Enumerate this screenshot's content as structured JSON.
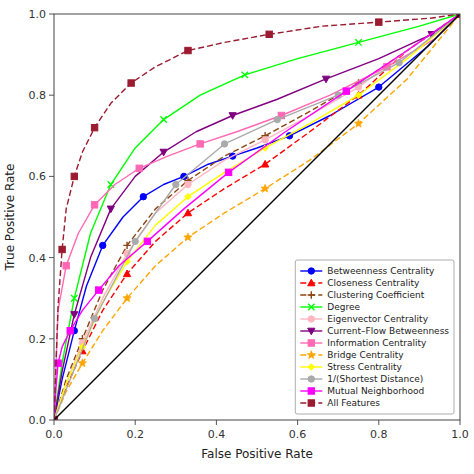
{
  "chart_data": {
    "type": "line",
    "xlabel": "False Positive Rate",
    "ylabel": "True Positive Rate",
    "xlim": [
      0,
      1
    ],
    "ylim": [
      0,
      1
    ],
    "xticks": [
      {
        "value": 0,
        "label": "0.0"
      },
      0.2,
      0.4,
      0.6,
      0.8,
      {
        "value": 1,
        "label": "1.0"
      }
    ],
    "yticks": [
      {
        "value": 0,
        "label": "0.0"
      },
      0.2,
      0.4,
      0.6,
      0.8,
      {
        "value": 1,
        "label": "1.0"
      }
    ],
    "legend": "lower right",
    "series": [
      {
        "name": "Betweenness Centrality",
        "color": "blue",
        "marker": "o",
        "line_style": "solid",
        "x": [
          0.0,
          0.02,
          0.05,
          0.08,
          0.12,
          0.17,
          0.22,
          0.27,
          0.32,
          0.38,
          0.44,
          0.5,
          0.58,
          0.68,
          0.8,
          0.92,
          1.0
        ],
        "values": [
          0.0,
          0.1,
          0.22,
          0.33,
          0.43,
          0.5,
          0.55,
          0.58,
          0.6,
          0.63,
          0.65,
          0.67,
          0.7,
          0.75,
          0.82,
          0.92,
          1.0
        ]
      },
      {
        "name": "Closeness Centrality",
        "color": "red",
        "marker": "^",
        "line_style": "dashed",
        "x": [
          0.0,
          0.03,
          0.07,
          0.12,
          0.18,
          0.25,
          0.33,
          0.42,
          0.52,
          0.63,
          0.75,
          0.87,
          1.0
        ],
        "values": [
          0.0,
          0.08,
          0.17,
          0.27,
          0.36,
          0.44,
          0.51,
          0.57,
          0.63,
          0.71,
          0.8,
          0.91,
          1.0
        ]
      },
      {
        "name": "Clustering Coefficient",
        "color": "#8B4513",
        "marker": "+",
        "line_style": "dashed",
        "x": [
          0.0,
          0.03,
          0.07,
          0.12,
          0.18,
          0.25,
          0.33,
          0.42,
          0.52,
          0.63,
          0.75,
          0.87,
          1.0
        ],
        "values": [
          0.0,
          0.1,
          0.2,
          0.32,
          0.43,
          0.52,
          0.59,
          0.65,
          0.7,
          0.76,
          0.83,
          0.91,
          1.0
        ]
      },
      {
        "name": "Degree",
        "color": "lime",
        "marker": "x",
        "line_style": "solid",
        "x": [
          0.0,
          0.02,
          0.05,
          0.09,
          0.14,
          0.2,
          0.27,
          0.36,
          0.47,
          0.6,
          0.75,
          0.9,
          1.0
        ],
        "values": [
          0.0,
          0.14,
          0.3,
          0.46,
          0.58,
          0.67,
          0.74,
          0.8,
          0.85,
          0.89,
          0.93,
          0.97,
          1.0
        ]
      },
      {
        "name": "Eigenvector Centrality",
        "color": "#FFB6C1",
        "marker": "o",
        "line_style": "solid",
        "x": [
          0.0,
          0.03,
          0.07,
          0.12,
          0.18,
          0.25,
          0.33,
          0.42,
          0.52,
          0.63,
          0.75,
          0.87,
          1.0
        ],
        "values": [
          0.0,
          0.09,
          0.19,
          0.3,
          0.41,
          0.51,
          0.58,
          0.64,
          0.69,
          0.75,
          0.82,
          0.91,
          1.0
        ]
      },
      {
        "name": "Current–Flow Betweenness",
        "color": "purple",
        "marker": "v",
        "line_style": "solid",
        "x": [
          0.0,
          0.02,
          0.05,
          0.09,
          0.14,
          0.2,
          0.27,
          0.35,
          0.44,
          0.55,
          0.67,
          0.8,
          0.93,
          1.0
        ],
        "values": [
          0.0,
          0.12,
          0.26,
          0.4,
          0.52,
          0.6,
          0.66,
          0.71,
          0.75,
          0.79,
          0.84,
          0.89,
          0.95,
          1.0
        ]
      },
      {
        "name": "Information Centrality",
        "color": "#FF69B4",
        "marker": "s",
        "line_style": "solid",
        "x": [
          0.0,
          0.01,
          0.03,
          0.06,
          0.1,
          0.15,
          0.21,
          0.28,
          0.36,
          0.45,
          0.56,
          0.68,
          0.82,
          0.94,
          1.0
        ],
        "values": [
          0.0,
          0.27,
          0.38,
          0.46,
          0.53,
          0.58,
          0.62,
          0.65,
          0.68,
          0.71,
          0.75,
          0.8,
          0.87,
          0.94,
          1.0
        ]
      },
      {
        "name": "Bridge Centrality",
        "color": "orange",
        "marker": "*",
        "line_style": "dashed",
        "x": [
          0.0,
          0.03,
          0.07,
          0.12,
          0.18,
          0.25,
          0.33,
          0.42,
          0.52,
          0.63,
          0.75,
          0.87,
          1.0
        ],
        "values": [
          0.0,
          0.07,
          0.14,
          0.22,
          0.3,
          0.38,
          0.45,
          0.51,
          0.57,
          0.64,
          0.73,
          0.84,
          1.0
        ]
      },
      {
        "name": "Stress Centrality",
        "color": "yellow",
        "marker": "D",
        "line_style": "solid",
        "x": [
          0.0,
          0.03,
          0.07,
          0.12,
          0.18,
          0.25,
          0.33,
          0.42,
          0.52,
          0.63,
          0.75,
          0.87,
          1.0
        ],
        "values": [
          0.0,
          0.09,
          0.18,
          0.29,
          0.39,
          0.48,
          0.55,
          0.61,
          0.67,
          0.73,
          0.8,
          0.89,
          1.0
        ]
      },
      {
        "name": "1/(Shortest Distance)",
        "color": "#aaaaaa",
        "marker": "o",
        "line_style": "solid",
        "x": [
          0.0,
          0.1,
          0.2,
          0.3,
          0.42,
          0.55,
          0.7,
          0.85,
          1.0
        ],
        "values": [
          0.0,
          0.25,
          0.44,
          0.58,
          0.68,
          0.74,
          0.8,
          0.88,
          1.0
        ]
      },
      {
        "name": "Mutual Neighborhood",
        "color": "magenta",
        "marker": "s",
        "line_style": "solid",
        "x": [
          0.0,
          0.005,
          0.01,
          0.02,
          0.04,
          0.07,
          0.11,
          0.16,
          0.23,
          0.32,
          0.43,
          0.57,
          0.72,
          0.87,
          1.0
        ],
        "values": [
          0.0,
          0.08,
          0.14,
          0.18,
          0.22,
          0.27,
          0.32,
          0.38,
          0.44,
          0.52,
          0.61,
          0.71,
          0.81,
          0.91,
          1.0
        ]
      },
      {
        "name": "All Features",
        "color": "#9B1B30",
        "marker": "s",
        "line_style": "dashed",
        "x": [
          0.0,
          0.01,
          0.02,
          0.03,
          0.05,
          0.07,
          0.1,
          0.14,
          0.19,
          0.25,
          0.33,
          0.42,
          0.53,
          0.66,
          0.8,
          0.93,
          1.0
        ],
        "values": [
          0.0,
          0.28,
          0.42,
          0.52,
          0.6,
          0.66,
          0.72,
          0.78,
          0.83,
          0.87,
          0.91,
          0.93,
          0.95,
          0.97,
          0.98,
          0.99,
          1.0
        ]
      },
      {
        "color": "black",
        "line_style": "solid",
        "x": [
          0,
          1
        ],
        "values": [
          0,
          1
        ]
      }
    ]
  }
}
